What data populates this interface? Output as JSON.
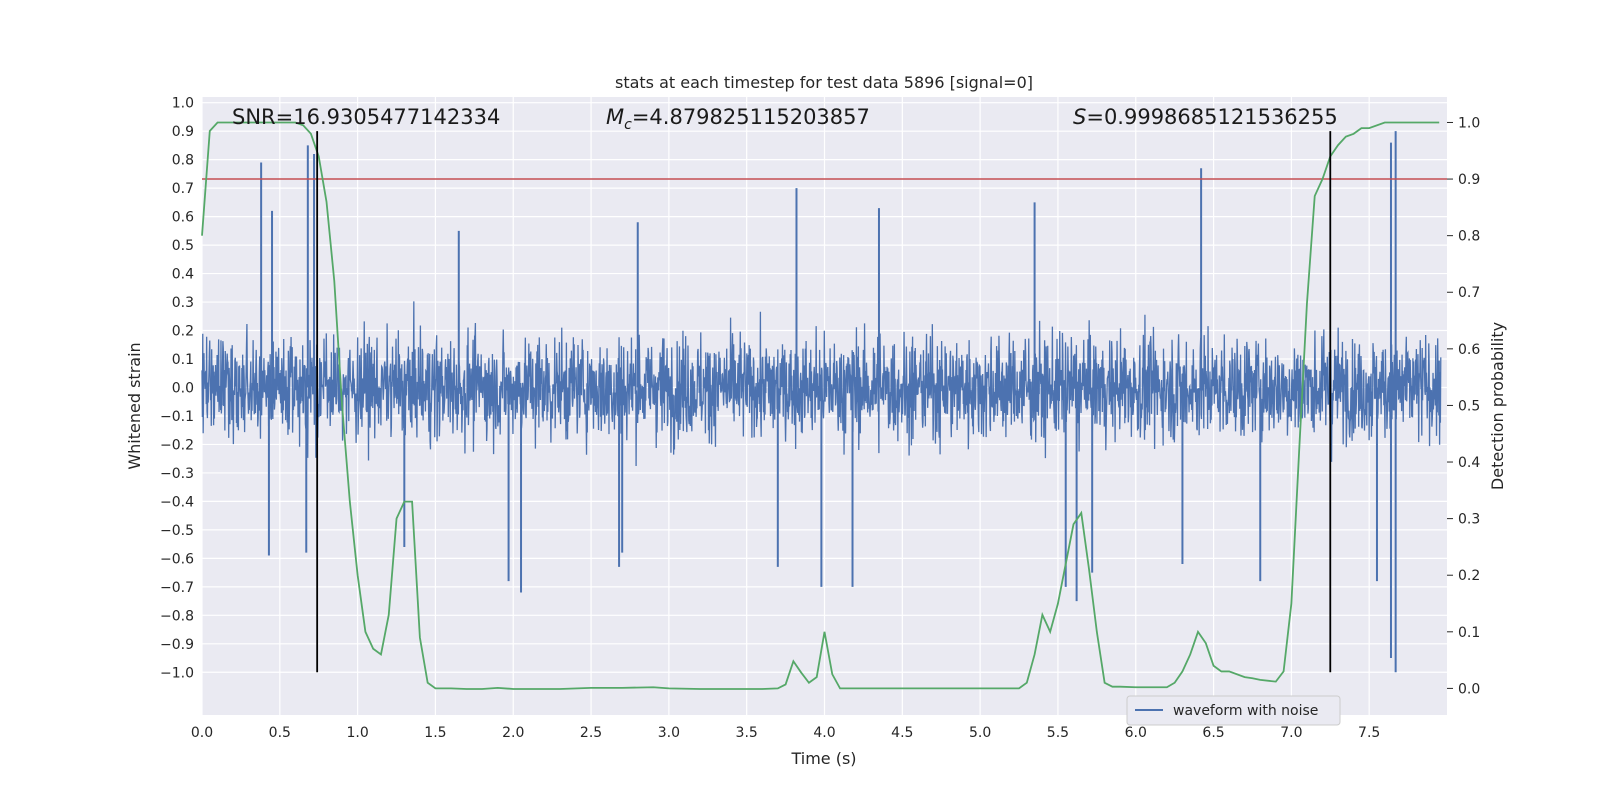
{
  "chart_data": {
    "type": "line",
    "title": "stats at each timestep for test data 5896 [signal=0]",
    "xlabel": "Time (s)",
    "ylabel": "Whitened strain",
    "y2label": "Detection probability",
    "xlim": [
      0,
      8
    ],
    "ylim": [
      -1.15,
      1.02
    ],
    "y2lim": [
      -0.047,
      1.045
    ],
    "xticks": [
      "0.0",
      "0.5",
      "1.0",
      "1.5",
      "2.0",
      "2.5",
      "3.0",
      "3.5",
      "4.0",
      "4.5",
      "5.0",
      "5.5",
      "6.0",
      "6.5",
      "7.0",
      "7.5"
    ],
    "yticks": [
      "1.0",
      "0.9",
      "0.8",
      "0.7",
      "0.6",
      "0.5",
      "0.4",
      "0.3",
      "0.2",
      "0.1",
      "0.0",
      "−0.1",
      "−0.2",
      "−0.3",
      "−0.4",
      "−0.5",
      "−0.6",
      "−0.7",
      "−0.8",
      "−0.9",
      "−1.0"
    ],
    "y2ticks": [
      "1.0",
      "0.9",
      "0.8",
      "0.7",
      "0.6",
      "0.5",
      "0.4",
      "0.3",
      "0.2",
      "0.1",
      "0.0"
    ],
    "annotations": {
      "snr": "SNR=16.9305477142334",
      "mc_symbol": "M",
      "mc_sub": "c",
      "mc_value": "=4.879825115203857",
      "s_symbol": "S",
      "s_value": "=0.9998685121536255"
    },
    "threshold": {
      "axis": "right",
      "value": 0.9,
      "color": "#c44e52"
    },
    "vlines": {
      "x": [
        0.74,
        7.25
      ],
      "ymin": -1.0,
      "ymax": 0.9,
      "color": "#000000"
    },
    "series": [
      {
        "name": "waveform with noise",
        "axis": "left",
        "color": "#4c72b0",
        "note_shape": "dense noise approx ±0.3 with spikes",
        "spikes": [
          [
            0.38,
            0.79
          ],
          [
            0.68,
            0.85
          ],
          [
            0.72,
            0.82
          ],
          [
            3.82,
            0.7
          ],
          [
            6.42,
            0.77
          ],
          [
            7.67,
            0.9
          ],
          [
            7.64,
            0.86
          ],
          [
            0.45,
            0.62
          ],
          [
            1.65,
            0.55
          ],
          [
            2.8,
            0.58
          ],
          [
            4.35,
            0.63
          ],
          [
            5.35,
            0.65
          ],
          [
            7.67,
            -1.0
          ],
          [
            7.64,
            -0.95
          ],
          [
            2.05,
            -0.72
          ],
          [
            1.97,
            -0.68
          ],
          [
            3.98,
            -0.7
          ],
          [
            4.18,
            -0.7
          ],
          [
            5.62,
            -0.75
          ],
          [
            5.72,
            -0.65
          ],
          [
            5.55,
            -0.7
          ],
          [
            3.7,
            -0.63
          ],
          [
            2.68,
            -0.63
          ],
          [
            6.3,
            -0.62
          ],
          [
            6.8,
            -0.68
          ],
          [
            1.3,
            -0.56
          ],
          [
            0.43,
            -0.59
          ],
          [
            0.67,
            -0.58
          ],
          [
            2.7,
            -0.58
          ],
          [
            7.55,
            -0.68
          ]
        ]
      },
      {
        "name": "",
        "axis": "right",
        "color": "#55a868",
        "x": [
          0.0,
          0.05,
          0.1,
          0.15,
          0.2,
          0.3,
          0.4,
          0.5,
          0.6,
          0.65,
          0.7,
          0.75,
          0.8,
          0.85,
          0.9,
          0.95,
          1.0,
          1.05,
          1.1,
          1.15,
          1.2,
          1.25,
          1.3,
          1.35,
          1.4,
          1.45,
          1.5,
          1.6,
          1.7,
          1.8,
          1.9,
          2.0,
          2.1,
          2.3,
          2.5,
          2.7,
          2.9,
          3.0,
          3.2,
          3.4,
          3.6,
          3.7,
          3.75,
          3.8,
          3.85,
          3.9,
          3.95,
          4.0,
          4.05,
          4.1,
          4.15,
          4.3,
          4.5,
          4.7,
          5.0,
          5.2,
          5.25,
          5.3,
          5.35,
          5.4,
          5.45,
          5.5,
          5.55,
          5.6,
          5.65,
          5.7,
          5.75,
          5.8,
          5.85,
          5.9,
          6.0,
          6.2,
          6.25,
          6.3,
          6.35,
          6.4,
          6.45,
          6.5,
          6.55,
          6.6,
          6.7,
          6.75,
          6.8,
          6.9,
          6.95,
          7.0,
          7.05,
          7.1,
          7.15,
          7.2,
          7.25,
          7.3,
          7.35,
          7.4,
          7.45,
          7.5,
          7.6,
          7.65,
          7.7,
          7.8,
          7.95
        ],
        "y": [
          0.8,
          0.985,
          1.0,
          1.0,
          1.0,
          1.0,
          1.0,
          1.0,
          1.0,
          0.995,
          0.98,
          0.94,
          0.86,
          0.72,
          0.5,
          0.33,
          0.2,
          0.1,
          0.07,
          0.06,
          0.13,
          0.3,
          0.33,
          0.33,
          0.09,
          0.01,
          0.0,
          0.0,
          -0.001,
          -0.001,
          0.001,
          -0.001,
          -0.001,
          -0.001,
          0.001,
          0.001,
          0.002,
          0.0,
          -0.001,
          -0.001,
          -0.001,
          0.0,
          0.007,
          0.048,
          0.028,
          0.01,
          0.02,
          0.1,
          0.025,
          0.0,
          0.0,
          0.0,
          0.0,
          0.0,
          0.0,
          0.0,
          0.0,
          0.01,
          0.06,
          0.13,
          0.1,
          0.15,
          0.22,
          0.29,
          0.31,
          0.21,
          0.1,
          0.01,
          0.003,
          0.003,
          0.002,
          0.002,
          0.01,
          0.03,
          0.06,
          0.1,
          0.08,
          0.04,
          0.03,
          0.03,
          0.02,
          0.018,
          0.015,
          0.012,
          0.03,
          0.15,
          0.42,
          0.68,
          0.87,
          0.9,
          0.94,
          0.96,
          0.975,
          0.98,
          0.99,
          0.99,
          1.0,
          1.0,
          1.0,
          1.0,
          1.0
        ]
      }
    ],
    "legend": {
      "placement": "lower-right",
      "label": "waveform with noise"
    },
    "grid": true
  }
}
